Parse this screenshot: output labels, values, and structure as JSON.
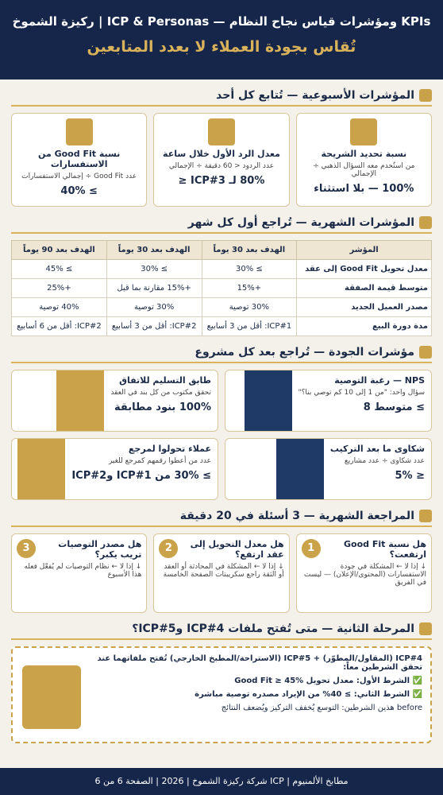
{
  "header": {
    "title": "KPIs ومؤشرات قياس نجاح النظام — ICP & Personas | ركيزة الشموخ",
    "subtitle": "تُقاس بجودة العملاء لا بعدد المتابعين"
  },
  "weekly": {
    "title": "المؤشرات الأسبوعية — تُتابع كل أحد",
    "cards": [
      {
        "title": "نسبة تحديد الشريحة",
        "desc": "من استُخدم معه السؤال الذهبي ÷ الإجمالي",
        "value": "100% — بلا استثناء"
      },
      {
        "title": "معدل الرد الأول خلال ساعة",
        "desc": "عدد الردود < 60 دقيقة ÷ الإجمالي",
        "value": "80% لـ ICP#3 ≤"
      },
      {
        "title": "نسبة Good Fit من الاستفسارات",
        "desc": "عدد Good Fit ÷ إجمالي الاستفسارات",
        "value": "≥ 40%"
      }
    ]
  },
  "monthly": {
    "title": "المؤشرات الشهرية — تُراجع أول كل شهر",
    "table": {
      "header": [
        "المؤشر",
        "الهدف بعد 30 يوماً",
        "الهدف بعد 30 يوماً",
        "الهدف بعد 90 يوماً"
      ],
      "rows": [
        [
          "معدل تحويل Good Fit إلى عقد",
          "≥ 30%",
          "≥ 30%",
          "≥ 45%"
        ],
        [
          "متوسط قيمة الصفقة",
          "+15%",
          "+15% مقارنة بما قبل",
          "+25%"
        ],
        [
          "مصدر العميل الجديد",
          "30% توصية",
          "30% توصية",
          "40% توصية"
        ],
        [
          "مدة دورة البيع",
          "ICP#1: أقل من 3 أسابيع",
          "ICP#2: أقل من 3 أسابيع",
          "ICP#2: أقل من 6 أسابيع"
        ]
      ]
    }
  },
  "quality": {
    "title": "مؤشرات الجودة — تُراجع بعد كل مشروع",
    "cards": [
      {
        "title": "NPS — رغبة التوصية",
        "desc": "سؤال واحد: \"من 1 إلى 10 كم توصي بنا؟\"",
        "value": "≥ متوسط 8"
      },
      {
        "title": "طابق التسليم للاتفاق",
        "desc": "تحقق مكتوب من كل بند في العقد",
        "value": "100% بنود مطابقة"
      },
      {
        "title": "شكاوى ما بعد التركيب",
        "desc": "عدد شكاوى ÷ عدد مشاريع",
        "value": "≤ 5%"
      },
      {
        "title": "عملاء تحولوا لمرجع",
        "desc": "عدد من أعطوا رقمهم كمرجع للغير",
        "value": "≥ 30% من ICP#1 وICP#2"
      }
    ]
  },
  "review": {
    "title": "المراجعة الشهرية — 3 أسئلة في 20 دقيقة",
    "cards": [
      {
        "number": "1",
        "question": "هل نسبة Good Fit ارتفعت؟",
        "answer": "↓ إذا لا ← المشكلة في جودة الاستفسارات (المحتوى/الإعلان) — ليست في الفريق"
      },
      {
        "number": "2",
        "question": "هل معدل التحويل إلى عقد ارتفع؟",
        "answer": "↓ إذا لا ← المشكلة في المحادثة أو العقد أو الثقة راجع سكريبتات الصفحة الخامسة"
      },
      {
        "number": "3",
        "question": "هل مصدر التوصيات تريب يكبر؟",
        "answer": "↓ إذا لا ← نظام التوصيات لم يُفعّل فعله هذا الأسبوع"
      }
    ]
  },
  "phase2": {
    "title": "المرحلة الثانية — متى تُفتح ملفات ICP#4 وICP#5؟",
    "intro": "ICP#4 (المقاول/المطوّر) + ICP#5 (الاستراحة/المطبخ الخارجي) تُفتح ملفاتهما عند تحقق الشرطين معاً:",
    "conditions": [
      "الشرط الأول: معدل تحويل Good Fit ≥ 45%",
      "الشرط الثاني: ≥ 40% من الإيراد مصدره توصية مباشرة"
    ],
    "note": "before هذين الشرطين: التوسع يُخفف التركيز ويُضعف النتائج"
  },
  "footer": "مطابخ الألمنيوم | ICP شركة ركيزة الشموخ | 2026 | الصفحة 6 من 6"
}
